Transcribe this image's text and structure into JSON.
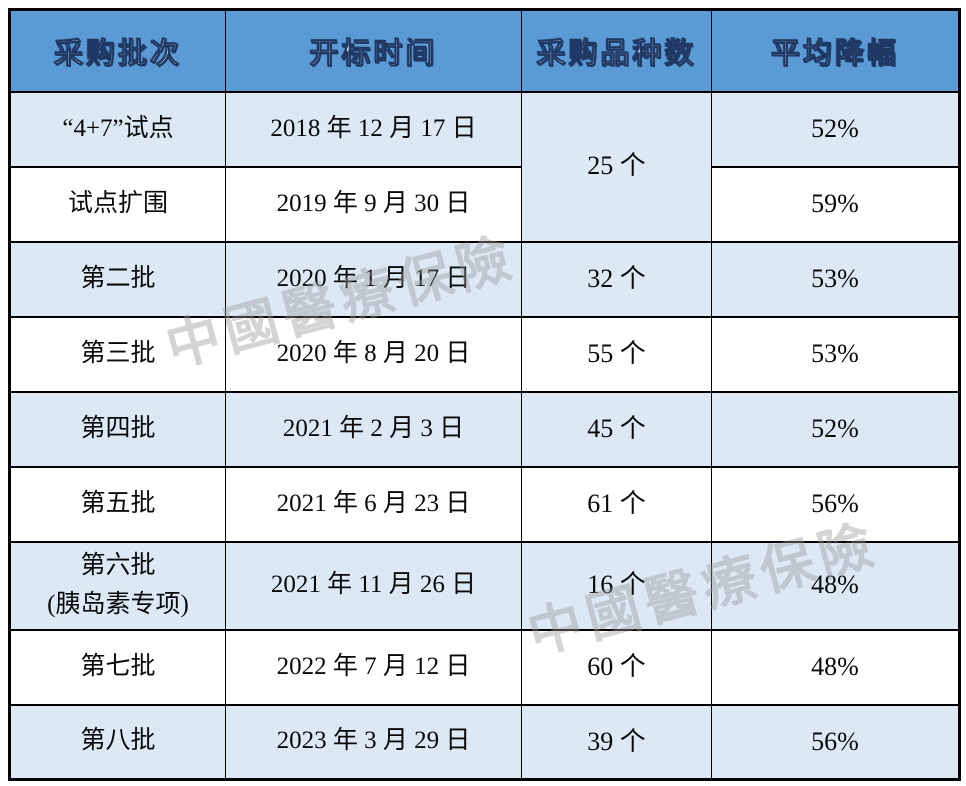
{
  "colors": {
    "header_bg": "#5b9bd5",
    "header_text": "#ffffff",
    "header_outline": "#1f3864",
    "row_shade": "#dce9f5",
    "row_plain": "#ffffff",
    "border": "#000000",
    "body_text": "#0a0a0a",
    "watermark": "#9a9a9a"
  },
  "watermark": {
    "text": "中國醫療保險"
  },
  "table": {
    "headers": [
      "采购批次",
      "开标时间",
      "采购品种数",
      "平均降幅"
    ],
    "rows": [
      {
        "batch": "“4+7”试点",
        "date": "2018 年 12 月 17 日",
        "count": "25 个",
        "count_rowspan": 2,
        "count_shaded": true,
        "reduction": "52%",
        "shaded": true
      },
      {
        "batch": "试点扩围",
        "date": "2019 年 9 月 30 日",
        "reduction": "59%",
        "shaded": false
      },
      {
        "batch": "第二批",
        "date": "2020 年 1 月 17 日",
        "count": "32 个",
        "reduction": "53%",
        "shaded": true
      },
      {
        "batch": "第三批",
        "date": "2020 年 8 月 20 日",
        "count": "55 个",
        "reduction": "53%",
        "shaded": false
      },
      {
        "batch": "第四批",
        "date": "2021 年 2 月 3 日",
        "count": "45 个",
        "reduction": "52%",
        "shaded": true
      },
      {
        "batch": "第五批",
        "date": "2021 年 6 月 23 日",
        "count": "61 个",
        "reduction": "56%",
        "shaded": false
      },
      {
        "batch": "第六批\n(胰岛素专项)",
        "date": "2021 年 11 月 26 日",
        "count": "16 个",
        "reduction": "48%",
        "shaded": true
      },
      {
        "batch": "第七批",
        "date": "2022 年 7 月 12 日",
        "count": "60 个",
        "reduction": "48%",
        "shaded": false
      },
      {
        "batch": "第八批",
        "date": "2023 年 3 月 29 日",
        "count": "39 个",
        "reduction": "56%",
        "shaded": true
      }
    ]
  }
}
